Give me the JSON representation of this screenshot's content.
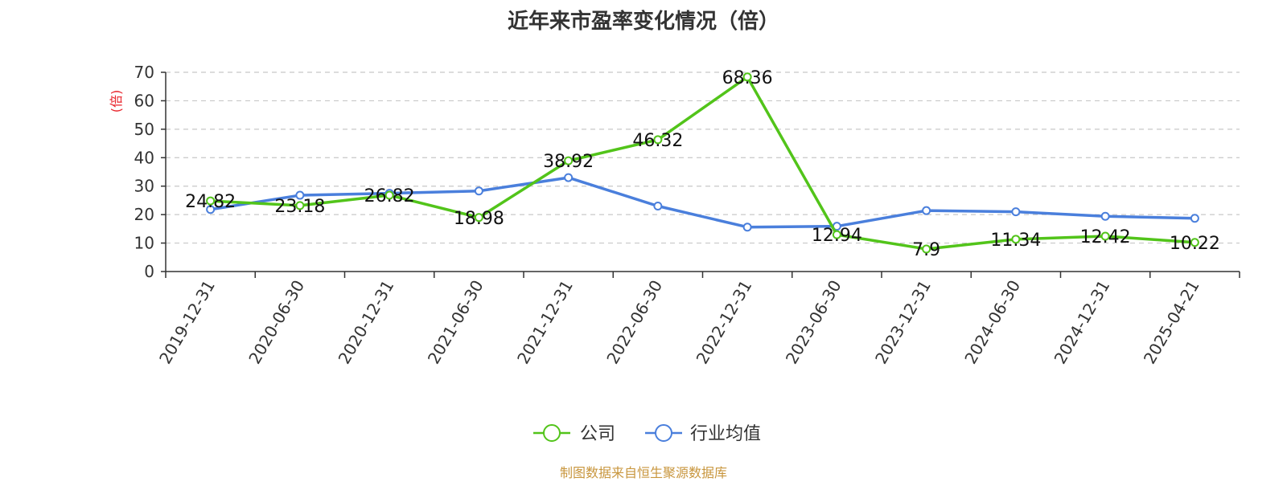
{
  "chart_data": {
    "type": "line",
    "title": "近年来市盈率变化情况（倍）",
    "ylabel": "(倍)",
    "xlabel": "",
    "ylim": [
      0,
      70
    ],
    "yticks": [
      "0",
      "10",
      "20",
      "30",
      "40",
      "50",
      "60",
      "70"
    ],
    "grid": "horizontal dashed",
    "legend_position": "bottom-center",
    "categories": [
      "2019-12-31",
      "2020-06-30",
      "2020-12-31",
      "2021-06-30",
      "2021-12-31",
      "2022-06-30",
      "2022-12-31",
      "2023-06-30",
      "2023-12-31",
      "2024-06-30",
      "2024-12-31",
      "2025-04-21"
    ],
    "series": [
      {
        "name": "公司",
        "color": "#52c41a",
        "values": [
          24.82,
          23.18,
          26.82,
          18.98,
          38.92,
          46.32,
          68.36,
          12.94,
          7.9,
          11.34,
          12.42,
          10.22
        ],
        "labels": [
          "24.82",
          "23.18",
          "26.82",
          "18.98",
          "38.92",
          "46.32",
          "68.36",
          "12.94",
          "7.9",
          "11.34",
          "12.42",
          "10.22"
        ]
      },
      {
        "name": "行业均值",
        "color": "#4a7fdc",
        "values": [
          21.8,
          26.8,
          27.5,
          28.3,
          33.0,
          23.0,
          15.6,
          15.9,
          21.4,
          21.0,
          19.4,
          18.7
        ]
      }
    ],
    "source": "制图数据来自恒生聚源数据库",
    "colors": {
      "axis": "#333333",
      "grid": "#c8c8c8",
      "unit": "#e8232a",
      "source": "#c8963e"
    }
  }
}
